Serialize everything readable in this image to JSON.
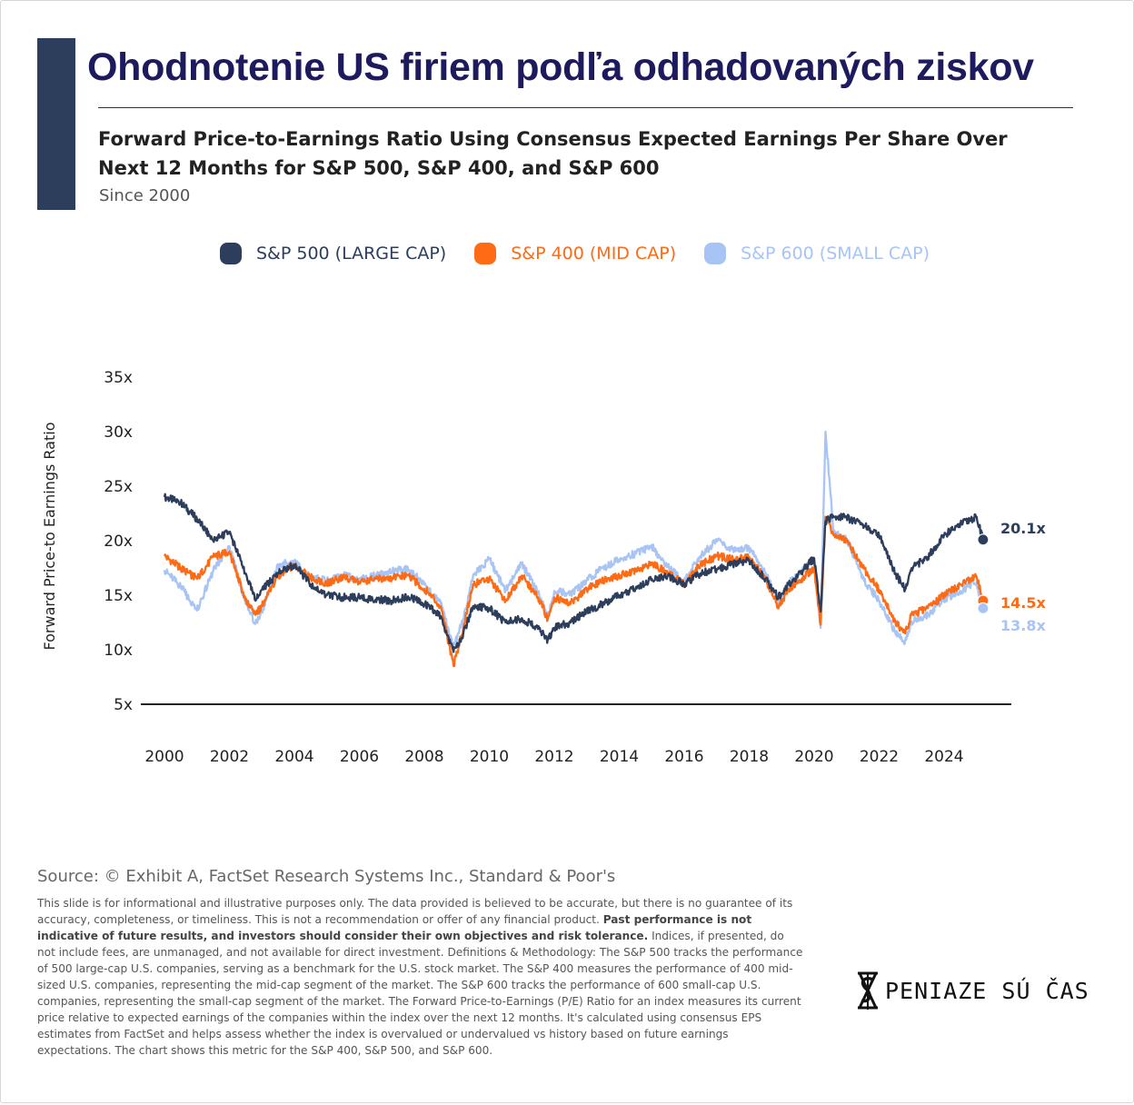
{
  "title": "Ohodnotenie US firiem podľa odhadovaných ziskov",
  "subtitle": "Forward Price-to-Earnings Ratio Using Consensus Expected Earnings Per Share Over Next 12 Months for S&P 500, S&P 400, and S&P 600",
  "since": "Since 2000",
  "colors": {
    "accent": "#2c3e5c",
    "title": "#1d1a5e",
    "sp500": "#2c3e5c",
    "sp400": "#ff6a14",
    "sp600": "#a8c4f5"
  },
  "legend": [
    {
      "label": "S&P 500 (LARGE CAP)",
      "color": "#2c3e5c"
    },
    {
      "label": "S&P 400 (MID CAP)",
      "color": "#ff6a14"
    },
    {
      "label": "S&P 600 (SMALL CAP)",
      "color": "#a8c4f5"
    }
  ],
  "chart_data": {
    "type": "line",
    "ylabel": "Forward Price-to Earnings Ratio",
    "xlabel": "",
    "ylim": [
      5,
      35
    ],
    "xlim": [
      2000,
      2025.6
    ],
    "yticks": [
      "5x",
      "10x",
      "15x",
      "20x",
      "25x",
      "30x",
      "35x"
    ],
    "xticks": [
      "2000",
      "2002",
      "2004",
      "2006",
      "2008",
      "2010",
      "2012",
      "2014",
      "2016",
      "2018",
      "2020",
      "2022",
      "2024"
    ],
    "legend_position": "top",
    "x": [
      2000,
      2000.5,
      2001,
      2001.5,
      2002,
      2002.5,
      2002.8,
      2003,
      2003.5,
      2004,
      2004.5,
      2005,
      2005.5,
      2006,
      2006.5,
      2007,
      2007.5,
      2008,
      2008.5,
      2008.9,
      2009.2,
      2009.5,
      2010,
      2010.5,
      2011,
      2011.5,
      2011.8,
      2012,
      2012.5,
      2013,
      2013.5,
      2014,
      2014.5,
      2015,
      2015.5,
      2016,
      2016.5,
      2017,
      2017.5,
      2018,
      2018.5,
      2018.9,
      2019.2,
      2019.5,
      2020,
      2020.2,
      2020.35,
      2020.6,
      2021,
      2021.5,
      2022,
      2022.5,
      2022.8,
      2023,
      2023.5,
      2024,
      2024.5,
      2025,
      2025.2
    ],
    "series": [
      {
        "name": "S&P 500 (LARGE CAP)",
        "color": "#2c3e5c",
        "end_label": "20.1x",
        "values": [
          24,
          23.5,
          22,
          20,
          20.8,
          17,
          14.5,
          15.5,
          17,
          17.8,
          16,
          15,
          14.8,
          14.8,
          14.6,
          14.5,
          14.9,
          14.2,
          13.1,
          9.8,
          11.5,
          14,
          13.8,
          12.5,
          12.9,
          11.9,
          10.9,
          12,
          12.5,
          13.5,
          14.2,
          15,
          15.6,
          16.5,
          16.8,
          16,
          17,
          17.4,
          17.9,
          18.2,
          16.5,
          14.8,
          16,
          16.8,
          18.4,
          13.5,
          21.8,
          22.2,
          22.1,
          21.5,
          20.5,
          17,
          15.5,
          17.5,
          18.5,
          20.5,
          21.5,
          22.2,
          20.1
        ]
      },
      {
        "name": "S&P 400 (MID CAP)",
        "color": "#ff6a14",
        "end_label": "14.5x",
        "values": [
          18.6,
          17.5,
          16.5,
          18.5,
          19,
          14.5,
          13.2,
          14,
          16.8,
          17.8,
          16.6,
          16.1,
          16.7,
          16.2,
          16.5,
          16.6,
          16.8,
          15.6,
          14,
          8.5,
          12,
          16,
          16.5,
          14.5,
          16.8,
          14.8,
          12.8,
          14.8,
          14.2,
          15.6,
          16.3,
          16.8,
          17.2,
          18,
          17,
          16,
          17.8,
          18.6,
          18.3,
          18.5,
          16.5,
          13.8,
          15.6,
          16.2,
          17.5,
          12.3,
          22.2,
          20.5,
          20,
          17.5,
          15.5,
          12.5,
          11.5,
          13.2,
          13.8,
          15,
          16,
          16.7,
          14.5
        ]
      },
      {
        "name": "S&P 600 (SMALL CAP)",
        "color": "#a8c4f5",
        "end_label": "13.8x",
        "values": [
          17.3,
          15.8,
          13.6,
          17.2,
          19.5,
          14.2,
          12.4,
          13.5,
          17.8,
          18,
          16.7,
          16.3,
          16.9,
          16.4,
          16.8,
          17.2,
          17.4,
          16,
          14.2,
          10.3,
          12.8,
          16.8,
          18.3,
          15.4,
          17.9,
          15.2,
          13,
          15.4,
          15.1,
          16.4,
          17.5,
          18.3,
          18.8,
          19.5,
          17.6,
          16.2,
          18.6,
          20,
          19.2,
          19.3,
          17.1,
          14.2,
          16.2,
          16.8,
          18.3,
          12,
          30,
          20.7,
          20.2,
          16.5,
          14.5,
          11.5,
          10.8,
          12.6,
          13.2,
          14.6,
          15.4,
          16.2,
          13.8
        ]
      }
    ]
  },
  "source": "Source: © Exhibit A, FactSet Research Systems Inc., Standard & Poor's",
  "disclaimer": {
    "part1": "This slide is for informational and illustrative purposes only. The data provided is believed to be accurate, but there is no guarantee of its accuracy, completeness, or timeliness. This is not a recommendation or offer of any financial product. ",
    "bold": "Past performance is not indicative of future results, and investors should consider their own objectives and risk tolerance.",
    "part2": " Indices, if presented, do not include fees, are unmanaged, and not available for direct investment. Definitions & Methodology: The S&P 500 tracks the performance of 500 large-cap U.S. companies, serving as a benchmark for the U.S. stock market. The S&P 400 measures the performance of 400 mid-sized U.S. companies, representing the mid-cap segment of the market. The S&P 600 tracks the performance of 600 small-cap U.S. companies, representing the small-cap segment of the market. The Forward Price-to-Earnings (P/E) Ratio for an index measures its current price relative to expected earnings of the companies within the index over the next 12 months. It's calculated using consensus EPS estimates from FactSet and helps assess whether the index is overvalued or undervalued vs history based on future earnings expectations. The chart shows this metric for the S&P 400, S&P 500, and S&P 600."
  },
  "logo": {
    "text": "PENIAZE SÚ ČAS",
    "icon": "hourglass-dollar-icon"
  }
}
